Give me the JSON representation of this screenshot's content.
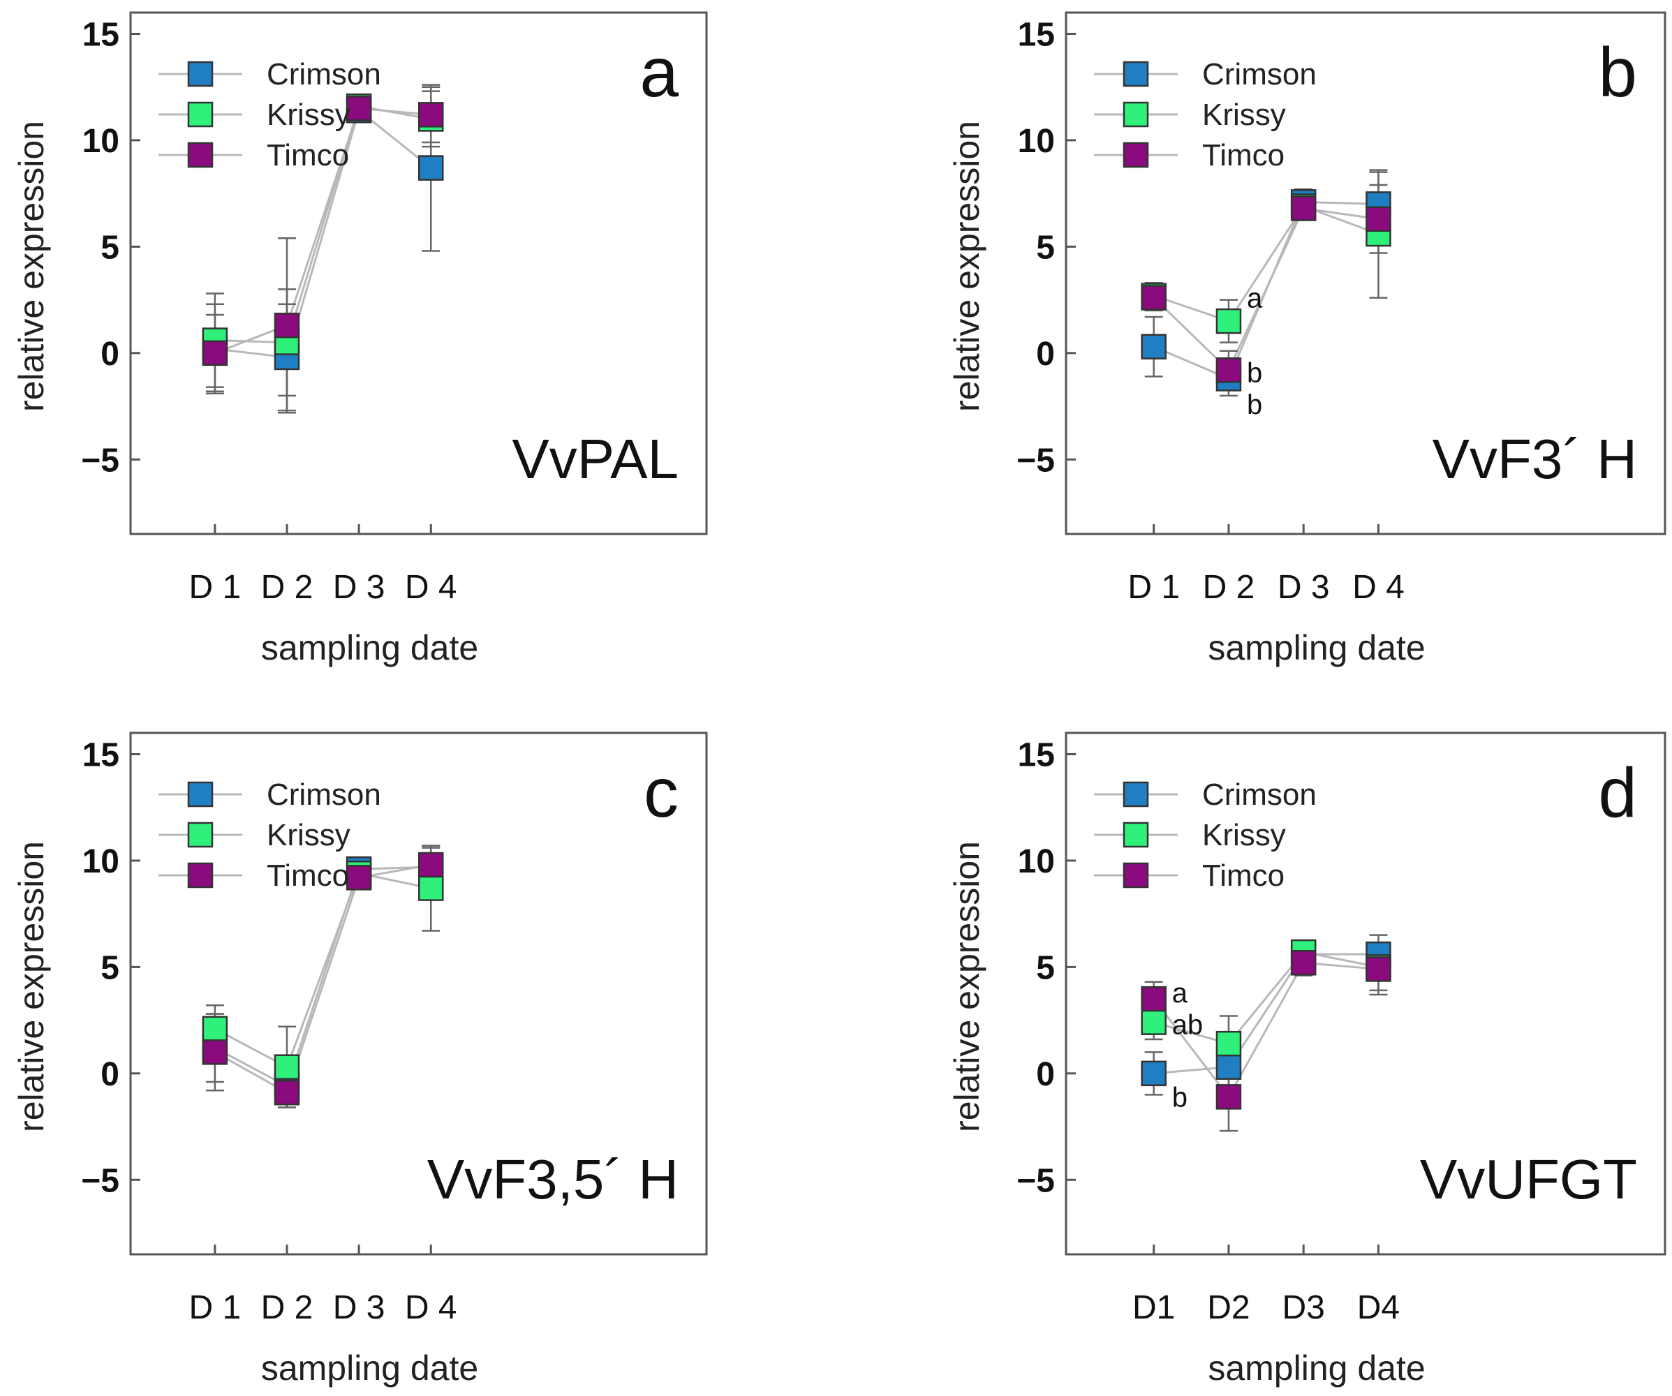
{
  "figure": {
    "legend": [
      {
        "name": "Crimson",
        "color": "#1f7fc2"
      },
      {
        "name": "Krissy",
        "color": "#2ef07a"
      },
      {
        "name": "Timco",
        "color": "#8b0a7e"
      }
    ]
  },
  "chart_data": [
    {
      "panel": "a",
      "gene": "VvPAL",
      "type": "line",
      "title": "",
      "xlabel": "sampling date",
      "ylabel": "relative expression",
      "categories": [
        "D 1",
        "D 2",
        "D 3",
        "D 4"
      ],
      "ylim": [
        -8.5,
        16
      ],
      "yticks": [
        15,
        10,
        5,
        0,
        -5
      ],
      "ytick_labels": [
        "15",
        "10",
        "5",
        "0",
        "−5"
      ],
      "series": [
        {
          "name": "Crimson",
          "color": "#1f7fc2",
          "values": [
            0.2,
            -0.2,
            11.4,
            8.7
          ],
          "err": [
            2.1,
            2.5,
            0.5,
            3.9
          ]
        },
        {
          "name": "Krissy",
          "color": "#2ef07a",
          "values": [
            0.6,
            0.5,
            11.6,
            11.0
          ],
          "err": [
            2.2,
            2.5,
            0.4,
            1.3
          ]
        },
        {
          "name": "Timco",
          "color": "#8b0a7e",
          "values": [
            0.0,
            1.3,
            11.5,
            11.2
          ],
          "err": [
            1.8,
            4.1,
            0.6,
            1.3
          ]
        }
      ],
      "annotations": []
    },
    {
      "panel": "b",
      "gene": "VvF3´ H",
      "type": "line",
      "title": "",
      "xlabel": "sampling date",
      "ylabel": "relative expression",
      "categories": [
        "D 1",
        "D 2",
        "D 3",
        "D 4"
      ],
      "ylim": [
        -8.5,
        16
      ],
      "yticks": [
        15,
        10,
        5,
        0,
        -5
      ],
      "ytick_labels": [
        "15",
        "10",
        "5",
        "0",
        "−5"
      ],
      "series": [
        {
          "name": "Crimson",
          "color": "#1f7fc2",
          "values": [
            0.3,
            -1.2,
            7.1,
            7.0
          ],
          "err": [
            1.4,
            0.8,
            0.6,
            1.5
          ]
        },
        {
          "name": "Krissy",
          "color": "#2ef07a",
          "values": [
            2.7,
            1.5,
            6.9,
            5.6
          ],
          "err": [
            0.6,
            1.0,
            0.5,
            3.0
          ]
        },
        {
          "name": "Timco",
          "color": "#8b0a7e",
          "values": [
            2.6,
            -0.8,
            6.8,
            6.3
          ],
          "err": [
            0.6,
            0.9,
            0.5,
            1.6
          ]
        }
      ],
      "annotations": [
        {
          "category": "D 2",
          "y": 2.6,
          "text": "a"
        },
        {
          "category": "D 2",
          "y": -0.9,
          "text": "b"
        },
        {
          "category": "D 2",
          "y": -2.4,
          "text": "b"
        }
      ]
    },
    {
      "panel": "c",
      "gene": "VvF3,5´ H",
      "type": "line",
      "title": "",
      "xlabel": "sampling date",
      "ylabel": "relative expression",
      "categories": [
        "D 1",
        "D 2",
        "D 3",
        "D 4"
      ],
      "ylim": [
        -8.5,
        16
      ],
      "yticks": [
        15,
        10,
        5,
        0,
        -5
      ],
      "ytick_labels": [
        "15",
        "10",
        "5",
        "0",
        "−5"
      ],
      "series": [
        {
          "name": "Crimson",
          "color": "#1f7fc2",
          "values": [
            1.2,
            -0.6,
            9.6,
            9.7
          ],
          "err": [
            1.6,
            1.0,
            0.4,
            0.9
          ]
        },
        {
          "name": "Krissy",
          "color": "#2ef07a",
          "values": [
            2.1,
            0.3,
            9.4,
            8.7
          ],
          "err": [
            1.1,
            1.9,
            0.5,
            2.0
          ]
        },
        {
          "name": "Timco",
          "color": "#8b0a7e",
          "values": [
            1.0,
            -0.9,
            9.2,
            9.8
          ],
          "err": [
            1.8,
            0.7,
            0.5,
            0.9
          ]
        }
      ],
      "annotations": []
    },
    {
      "panel": "d",
      "gene": "VvUFGT",
      "type": "line",
      "title": "",
      "xlabel": "sampling date",
      "ylabel": "relative expression",
      "categories": [
        "D1",
        "D2",
        "D3",
        "D4"
      ],
      "ylim": [
        -8.5,
        16
      ],
      "yticks": [
        15,
        10,
        5,
        0,
        -5
      ],
      "ytick_labels": [
        "15",
        "10",
        "5",
        "0",
        "−5"
      ],
      "series": [
        {
          "name": "Crimson",
          "color": "#1f7fc2",
          "values": [
            0.0,
            0.3,
            5.6,
            5.6
          ],
          "err": [
            1.0,
            1.2,
            0.5,
            0.9
          ]
        },
        {
          "name": "Krissy",
          "color": "#2ef07a",
          "values": [
            2.4,
            1.4,
            5.7,
            5.0
          ],
          "err": [
            0.8,
            1.3,
            0.5,
            1.1
          ]
        },
        {
          "name": "Timco",
          "color": "#8b0a7e",
          "values": [
            3.5,
            -1.1,
            5.2,
            4.9
          ],
          "err": [
            0.8,
            1.6,
            0.6,
            1.2
          ]
        }
      ],
      "annotations": [
        {
          "category": "D1",
          "y": 3.8,
          "text": "a"
        },
        {
          "category": "D1",
          "y": 2.3,
          "text": "ab"
        },
        {
          "category": "D1",
          "y": -1.1,
          "text": "b"
        }
      ]
    }
  ]
}
